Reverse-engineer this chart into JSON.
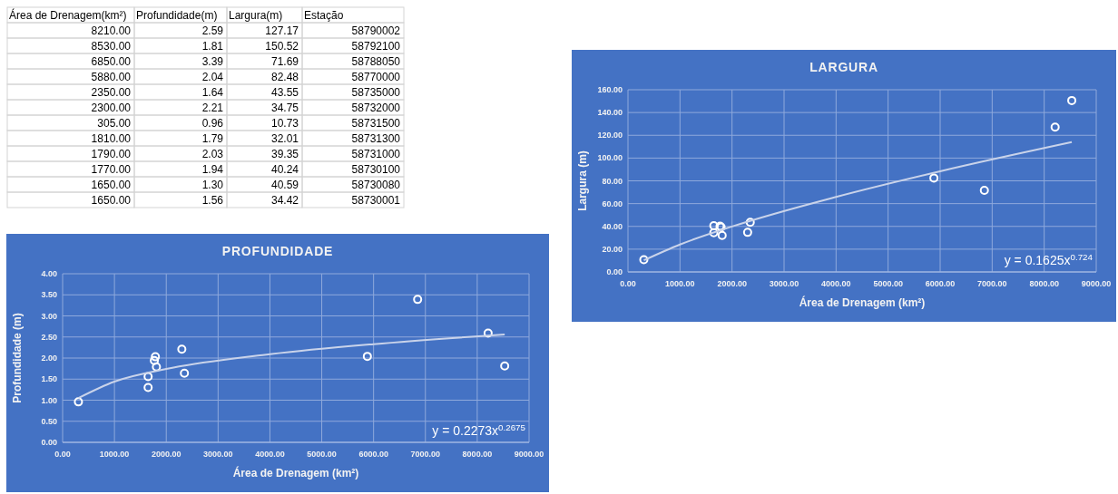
{
  "chart_data": [
    {
      "type": "other",
      "annotations": [
        "Área de Drenagem(km²)",
        "Profundidade(m)",
        "Largura(m)",
        "Estação",
        "8210.00",
        "2.59",
        "127.17",
        "58790002",
        "8530.00",
        "1.81",
        "150.52",
        "58792100",
        "6850.00",
        "3.39",
        "71.69",
        "58788050",
        "5880.00",
        "2.04",
        "82.48",
        "58770000",
        "2350.00",
        "1.64",
        "43.55",
        "58735000",
        "2300.00",
        "2.21",
        "34.75",
        "58732000",
        "305.00",
        "0.96",
        "10.73",
        "58731500",
        "1810.00",
        "1.79",
        "32.01",
        "58731300",
        "1790.00",
        "2.03",
        "39.35",
        "58731000",
        "1770.00",
        "1.94",
        "40.24",
        "58730100",
        "1650.00",
        "1.30",
        "40.59",
        "58730080",
        "1650.00",
        "1.56",
        "34.42",
        "58730001"
      ]
    },
    {
      "type": "scatter",
      "title": "LARGURA",
      "xlabel": "Área de Drenagem (km²)",
      "ylabel": "Largura (m)",
      "grid": true,
      "xlim": [
        0,
        9000
      ],
      "xticks": [
        {
          "value": 0,
          "label": "0.00"
        },
        {
          "value": 1000,
          "label": "1000.00"
        },
        {
          "value": 2000,
          "label": "2000.00"
        },
        {
          "value": 3000,
          "label": "3000.00"
        },
        {
          "value": 4000,
          "label": "4000.00"
        },
        {
          "value": 5000,
          "label": "5000.00"
        },
        {
          "value": 6000,
          "label": "6000.00"
        },
        {
          "value": 7000,
          "label": "7000.00"
        },
        {
          "value": 8000,
          "label": "8000.00"
        },
        {
          "value": 9000,
          "label": "9000.00"
        }
      ],
      "ylim": [
        0,
        160
      ],
      "yticks": [
        {
          "value": 0,
          "label": "0.00"
        },
        {
          "value": 20,
          "label": "20.00"
        },
        {
          "value": 40,
          "label": "40.00"
        },
        {
          "value": 60,
          "label": "60.00"
        },
        {
          "value": 80,
          "label": "80.00"
        },
        {
          "value": 100,
          "label": "100.00"
        },
        {
          "value": 120,
          "label": "120.00"
        },
        {
          "value": 140,
          "label": "140.00"
        },
        {
          "value": 160,
          "label": "160.00"
        }
      ],
      "annotations": [
        "y = 0.1625x$^{0.724}$"
      ],
      "series": [
        {
          "type": "scatter",
          "marker": "circle",
          "color": "#ffffff",
          "x": [
            8210,
            8530,
            6850,
            5880,
            2350,
            2300,
            305,
            1810,
            1790,
            1770,
            1650,
            1650
          ],
          "values": [
            127.17,
            150.52,
            71.69,
            82.48,
            43.55,
            34.75,
            10.73,
            32.01,
            39.35,
            40.24,
            40.59,
            34.42
          ]
        },
        {
          "type": "line",
          "color": "#c9d3ea",
          "x": [
            305,
            1000,
            2000,
            4000,
            6000,
            8530
          ],
          "values": [
            10.2,
            24.1,
            39.9,
            65.9,
            88.4,
            114.0
          ]
        }
      ]
    },
    {
      "type": "scatter",
      "title": "PROFUNDIDADE",
      "xlabel": "Área de Drenagem (km²)",
      "ylabel": "Profundidade (m)",
      "grid": true,
      "xlim": [
        0,
        9000
      ],
      "xticks": [
        {
          "value": 0,
          "label": "0.00"
        },
        {
          "value": 1000,
          "label": "1000.00"
        },
        {
          "value": 2000,
          "label": "2000.00"
        },
        {
          "value": 3000,
          "label": "3000.00"
        },
        {
          "value": 4000,
          "label": "4000.00"
        },
        {
          "value": 5000,
          "label": "5000.00"
        },
        {
          "value": 6000,
          "label": "6000.00"
        },
        {
          "value": 7000,
          "label": "7000.00"
        },
        {
          "value": 8000,
          "label": "8000.00"
        },
        {
          "value": 9000,
          "label": "9000.00"
        }
      ],
      "ylim": [
        0,
        4
      ],
      "yticks": [
        {
          "value": 0,
          "label": "0.00"
        },
        {
          "value": 0.5,
          "label": "0.50"
        },
        {
          "value": 1,
          "label": "1.00"
        },
        {
          "value": 1.5,
          "label": "1.50"
        },
        {
          "value": 2,
          "label": "2.00"
        },
        {
          "value": 2.5,
          "label": "2.50"
        },
        {
          "value": 3,
          "label": "3.00"
        },
        {
          "value": 3.5,
          "label": "3.50"
        },
        {
          "value": 4,
          "label": "4.00"
        }
      ],
      "annotations": [
        "y = 0.2273x$^{0.2675}$"
      ],
      "series": [
        {
          "type": "scatter",
          "marker": "circle",
          "color": "#ffffff",
          "x": [
            8210,
            8530,
            6850,
            5880,
            2350,
            2300,
            305,
            1810,
            1790,
            1770,
            1650,
            1650
          ],
          "values": [
            2.59,
            1.81,
            3.39,
            2.04,
            1.64,
            2.21,
            0.96,
            1.79,
            2.03,
            1.94,
            1.3,
            1.56
          ]
        },
        {
          "type": "line",
          "color": "#c9d3ea",
          "x": [
            305,
            1000,
            2000,
            4000,
            6000,
            8530
          ],
          "values": [
            1.05,
            1.44,
            1.74,
            2.09,
            2.33,
            2.56
          ]
        }
      ]
    }
  ]
}
